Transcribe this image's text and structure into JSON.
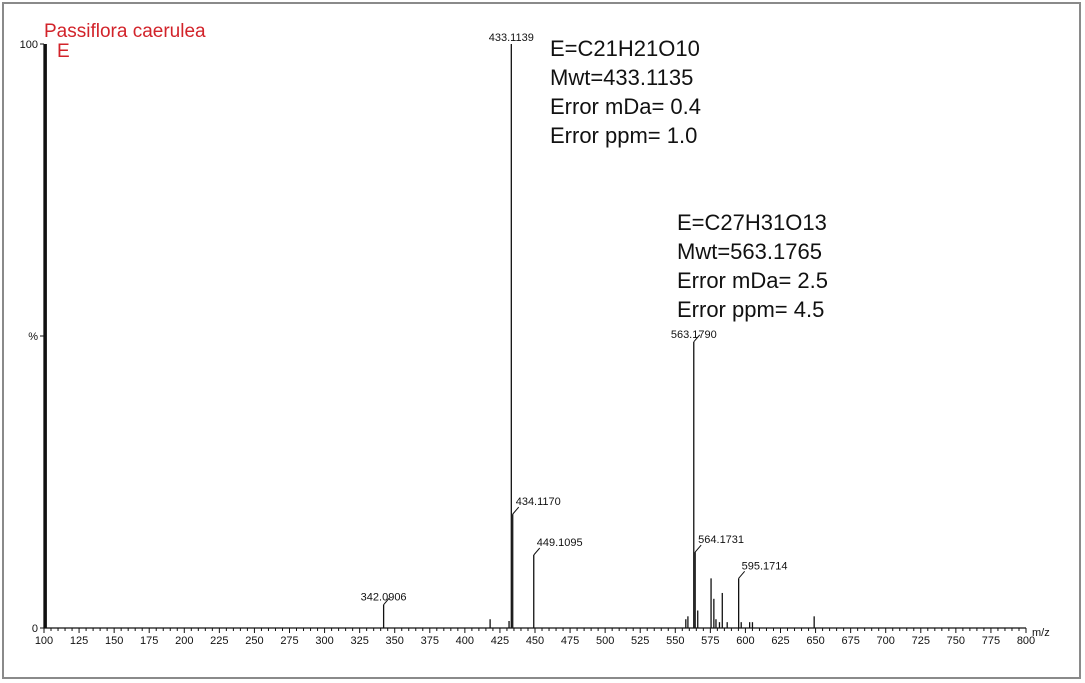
{
  "chart_data": {
    "type": "bar",
    "title": "Passiflora caerulea",
    "subtitle": "E",
    "xlabel": "m/z",
    "ylabel": "%",
    "xlim": [
      100,
      800
    ],
    "ylim": [
      0,
      100
    ],
    "x_ticks": [
      100,
      125,
      150,
      175,
      200,
      225,
      250,
      275,
      300,
      325,
      350,
      375,
      400,
      425,
      450,
      475,
      500,
      525,
      550,
      575,
      600,
      625,
      650,
      675,
      700,
      725,
      750,
      775,
      800
    ],
    "y_ticks": [
      {
        "value": 0,
        "label": "0"
      },
      {
        "value": 50,
        "label": "%"
      },
      {
        "value": 100,
        "label": "100"
      }
    ],
    "grid": false,
    "peaks": [
      {
        "mz": 101.0,
        "intensity": 100,
        "label": ""
      },
      {
        "mz": 342.0906,
        "intensity": 4,
        "label": "342.0906"
      },
      {
        "mz": 418.0,
        "intensity": 1.5,
        "label": ""
      },
      {
        "mz": 431.5,
        "intensity": 1.2,
        "label": ""
      },
      {
        "mz": 433.1139,
        "intensity": 100,
        "label": "433.1139"
      },
      {
        "mz": 434.117,
        "intensity": 19.5,
        "label": "434.1170"
      },
      {
        "mz": 449.1095,
        "intensity": 12.5,
        "label": "449.1095"
      },
      {
        "mz": 557.5,
        "intensity": 1.5,
        "label": ""
      },
      {
        "mz": 559.0,
        "intensity": 2.0,
        "label": ""
      },
      {
        "mz": 563.179,
        "intensity": 49,
        "label": "563.1790"
      },
      {
        "mz": 564.1731,
        "intensity": 13,
        "label": "564.1731"
      },
      {
        "mz": 566.0,
        "intensity": 3.0,
        "label": ""
      },
      {
        "mz": 575.5,
        "intensity": 8.5,
        "label": ""
      },
      {
        "mz": 577.5,
        "intensity": 5.0,
        "label": ""
      },
      {
        "mz": 579.0,
        "intensity": 1.5,
        "label": ""
      },
      {
        "mz": 581.5,
        "intensity": 1.0,
        "label": ""
      },
      {
        "mz": 583.5,
        "intensity": 6.0,
        "label": ""
      },
      {
        "mz": 587.0,
        "intensity": 1.0,
        "label": ""
      },
      {
        "mz": 595.1714,
        "intensity": 8.5,
        "label": "595.1714"
      },
      {
        "mz": 597.0,
        "intensity": 1.0,
        "label": ""
      },
      {
        "mz": 603.0,
        "intensity": 1.0,
        "label": ""
      },
      {
        "mz": 605.0,
        "intensity": 1.0,
        "label": ""
      },
      {
        "mz": 649.0,
        "intensity": 2.0,
        "label": ""
      }
    ],
    "annotations": [
      {
        "lines": [
          "E=C21H21O10",
          "Mwt=433.1135",
          "Error mDa= 0.4",
          "Error ppm= 1.0"
        ]
      },
      {
        "lines": [
          "E=C27H31O13",
          "Mwt=563.1765",
          "Error mDa= 2.5",
          "Error ppm= 4.5"
        ]
      }
    ]
  }
}
